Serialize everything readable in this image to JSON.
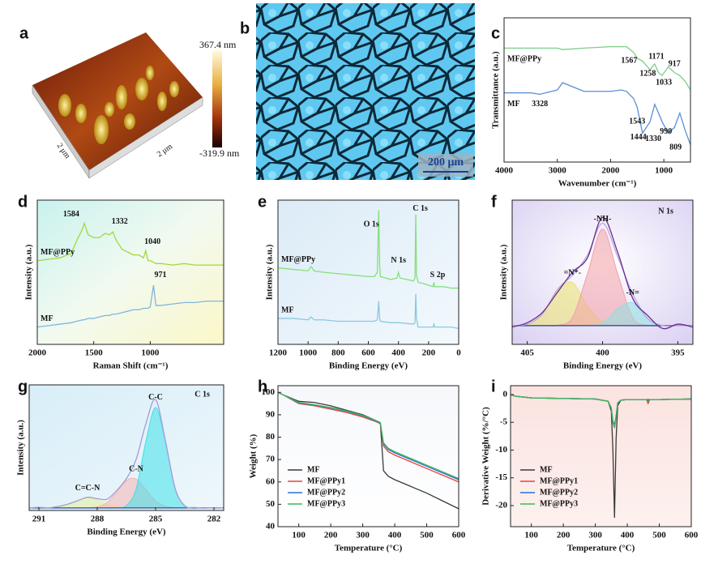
{
  "images": [
    {
      "panel": "a",
      "colorbar_max": "367.4 nm",
      "colorbar_min": "-319.9 nm",
      "axis_labels": [
        "2 μm",
        "2 μm"
      ]
    },
    {
      "panel": "b",
      "scale_bar": "200 μm"
    }
  ],
  "chart_data": [
    {
      "type": "line",
      "panel": "c",
      "xlabel": "Wavenumber (cm⁻¹)",
      "ylabel": "Transmittance (a.u.)",
      "xlim": [
        4000,
        500
      ],
      "xticks": [
        4000,
        3000,
        2000,
        1000
      ],
      "ylim": [
        0,
        100
      ],
      "legend": "inline-below",
      "x": [
        4000,
        3500,
        3328,
        3000,
        2900,
        2500,
        2000,
        1800,
        1700,
        1567,
        1500,
        1400,
        1258,
        1171,
        1100,
        1033,
        917,
        800,
        700,
        600,
        500
      ],
      "series": [
        {
          "name": "MF@PPy",
          "color": "#7ccf8a",
          "values": [
            79,
            79,
            79,
            79,
            78,
            79,
            80,
            80,
            80,
            76,
            72,
            70,
            64,
            68,
            62,
            60,
            66,
            62,
            60,
            56,
            50
          ]
        },
        {
          "name": "MF",
          "color": "#5b8fd6",
          "values": [
            48,
            48,
            47,
            50,
            55,
            49,
            49,
            50,
            49,
            44,
            38,
            20,
            28,
            40,
            34,
            28,
            20,
            24,
            34,
            22,
            12
          ]
        }
      ],
      "annotations": [
        {
          "text": "1567",
          "x": 1650,
          "y": 70
        },
        {
          "text": "1258",
          "x": 1300,
          "y": 61
        },
        {
          "text": "1171",
          "x": 1140,
          "y": 73
        },
        {
          "text": "917",
          "x": 800,
          "y": 68
        },
        {
          "text": "1033",
          "x": 1000,
          "y": 55
        },
        {
          "text": "3328",
          "x": 3328,
          "y": 40
        },
        {
          "text": "1543",
          "x": 1500,
          "y": 28
        },
        {
          "text": "1444",
          "x": 1480,
          "y": 17
        },
        {
          "text": "1330",
          "x": 1200,
          "y": 16
        },
        {
          "text": "990",
          "x": 960,
          "y": 21
        },
        {
          "text": "809",
          "x": 780,
          "y": 10
        }
      ]
    },
    {
      "type": "line",
      "panel": "d",
      "xlabel": "Raman Shift (cm⁻¹)",
      "ylabel": "Intensity (a.u.)",
      "xlim": [
        2000,
        350
      ],
      "xticks": [
        2000,
        1500,
        1000
      ],
      "ylim": [
        0,
        100
      ],
      "legend": "inline-above",
      "x": [
        2000,
        1900,
        1800,
        1700,
        1650,
        1600,
        1584,
        1550,
        1500,
        1450,
        1400,
        1360,
        1332,
        1300,
        1250,
        1200,
        1150,
        1100,
        1060,
        1040,
        1020,
        1000,
        971,
        950,
        900,
        800,
        700,
        600,
        500,
        400,
        350
      ],
      "series": [
        {
          "name": "MF@PPy",
          "color": "#a6d63c",
          "values": [
            58,
            59,
            60,
            63,
            72,
            80,
            84,
            76,
            74,
            74,
            77,
            76,
            78,
            72,
            66,
            64,
            62,
            62,
            60,
            65,
            58,
            58,
            57,
            56,
            56,
            55,
            56,
            55,
            55,
            55,
            55
          ]
        },
        {
          "name": "MF",
          "color": "#7fb6dd",
          "values": [
            12,
            13,
            14,
            15,
            16,
            17,
            17,
            18,
            18,
            19,
            20,
            20,
            21,
            21,
            22,
            23,
            24,
            24,
            25,
            25,
            25,
            26,
            41,
            27,
            27,
            28,
            29,
            29,
            30,
            30,
            30
          ]
        }
      ],
      "annotations": [
        {
          "text": "1584",
          "x": 1700,
          "y": 90
        },
        {
          "text": "1332",
          "x": 1270,
          "y": 85
        },
        {
          "text": "1040",
          "x": 980,
          "y": 71
        },
        {
          "text": "971",
          "x": 910,
          "y": 48
        }
      ]
    },
    {
      "type": "line",
      "panel": "e",
      "xlabel": "Binding Energy (eV)",
      "ylabel": "Intensity (a.u.)",
      "xlim": [
        1200,
        0
      ],
      "xticks": [
        1200,
        1000,
        800,
        600,
        400,
        200,
        0
      ],
      "ylim": [
        0,
        100
      ],
      "legend": "inline-above",
      "x": [
        1200,
        1100,
        1000,
        980,
        960,
        900,
        800,
        700,
        600,
        560,
        540,
        531,
        525,
        520,
        450,
        410,
        400,
        390,
        300,
        290,
        285,
        280,
        270,
        230,
        200,
        170,
        164,
        160,
        100,
        50,
        0
      ],
      "series": [
        {
          "name": "MF@PPy",
          "color": "#86e07a",
          "values": [
            53,
            52,
            51,
            54,
            51,
            50,
            49,
            48,
            47,
            47,
            50,
            93,
            55,
            47,
            45,
            46,
            50,
            46,
            44,
            46,
            90,
            48,
            43,
            42,
            41,
            40,
            43,
            40,
            40,
            39,
            39
          ]
        },
        {
          "name": "MF",
          "color": "#8cc8e0",
          "values": [
            18,
            18,
            17,
            19,
            17,
            17,
            16,
            16,
            16,
            16,
            17,
            30,
            18,
            16,
            15,
            15,
            15,
            15,
            14,
            15,
            35,
            18,
            12,
            12,
            12,
            12,
            14,
            12,
            12,
            12,
            11
          ]
        }
      ],
      "annotations": [
        {
          "text": "O 1s",
          "x": 580,
          "y": 83
        },
        {
          "text": "N 1s",
          "x": 400,
          "y": 58
        },
        {
          "text": "C 1s",
          "x": 255,
          "y": 94
        },
        {
          "text": "S 2p",
          "x": 140,
          "y": 48
        }
      ]
    },
    {
      "type": "line",
      "panel": "f",
      "xlabel": "Binding Energy (eV)",
      "ylabel": "Intensity (a.u.)",
      "xlim": [
        406,
        394
      ],
      "xticks": [
        405,
        400,
        395
      ],
      "ylim": [
        0,
        100
      ],
      "legend": "peak",
      "smooth": true,
      "x": [
        406,
        405,
        404,
        403,
        402,
        401,
        400,
        399,
        398,
        397,
        396,
        395,
        394
      ],
      "series": [
        {
          "name": "=N⁺-",
          "color": "#ece36a",
          "fill": true,
          "values": [
            13,
            13.8,
            20.4,
            37.3,
            42.7,
            26.3,
            15.3,
            13.1,
            13,
            13,
            13,
            13,
            13
          ]
        },
        {
          "name": "-NH-",
          "color": "#f2a0a8",
          "fill": true,
          "values": [
            13,
            13,
            13,
            13.2,
            18.7,
            49,
            80,
            49,
            18.7,
            13.2,
            13,
            13,
            13
          ]
        },
        {
          "name": "-N=",
          "color": "#8fe0e0",
          "fill": true,
          "values": [
            13,
            13,
            13,
            13,
            13,
            13,
            14.7,
            24.6,
            28.8,
            17.5,
            13.3,
            13,
            13
          ]
        },
        {
          "color": "#1f3f8f",
          "values": [
            13,
            13,
            13,
            13,
            13,
            13,
            13,
            13,
            13,
            13,
            13,
            13,
            13
          ]
        },
        {
          "color": "#b9a6e0",
          "values": [
            13,
            14,
            21,
            38,
            48,
            62,
            84,
            61,
            35,
            18,
            13,
            13,
            13
          ]
        },
        {
          "color": "#6a2c91",
          "values": [
            12,
            15,
            22,
            36,
            50,
            60,
            88,
            64,
            32,
            20,
            11,
            14,
            12
          ]
        }
      ],
      "annotations": [
        {
          "text": "N 1s",
          "x": 395.8,
          "y": 92
        }
      ]
    },
    {
      "type": "line",
      "panel": "g",
      "xlabel": "Binding Energy (eV)",
      "ylabel": "Intensity (a.u.)",
      "xlim": [
        291.5,
        281.5
      ],
      "xticks": [
        291,
        288,
        285,
        282
      ],
      "ylim": [
        0,
        100
      ],
      "legend": "peak",
      "smooth": true,
      "x": [
        291.5,
        291,
        290.5,
        290,
        289.5,
        289,
        288.5,
        288,
        287.5,
        287,
        286.5,
        286,
        285.5,
        285,
        284.5,
        284,
        283.5,
        283,
        282.5,
        282,
        281.5
      ],
      "series": [
        {
          "name": "C=C-N",
          "color": "#e6ef9a",
          "fill": true,
          "values": [
            2,
            2,
            2.1,
            2.8,
            4.9,
            8.2,
            10,
            8.2,
            4.9,
            2.8,
            2.1,
            2,
            2,
            2,
            2,
            2,
            2,
            2,
            2,
            2,
            2
          ]
        },
        {
          "name": "C-N",
          "color": "#f5b3b3",
          "fill": true,
          "values": [
            2,
            2,
            2,
            2,
            2,
            2,
            2.1,
            2.9,
            6.3,
            14.5,
            23.9,
            25,
            16.6,
            7.5,
            3.3,
            2.2,
            2,
            2,
            2,
            2,
            2
          ]
        },
        {
          "name": "C-C",
          "color": "#3fe0ea",
          "fill": true,
          "values": [
            2,
            2,
            2,
            2,
            2,
            2,
            2,
            2,
            2,
            2.1,
            3.9,
            17.2,
            55,
            82,
            55,
            17.2,
            3.9,
            2.1,
            2,
            2,
            2
          ]
        },
        {
          "color": "#1f4f9f",
          "values": [
            2,
            2,
            2,
            2,
            2,
            2,
            2,
            2,
            2,
            2,
            2,
            2,
            2,
            2,
            2,
            2,
            2,
            2,
            2,
            2,
            2
          ]
        },
        {
          "color": "#a79ad8",
          "values": [
            2,
            2.5,
            2.1,
            3.2,
            5.1,
            7.8,
            10.5,
            9.4,
            9.0,
            15.9,
            25.4,
            40.8,
            69.1,
            88.2,
            55.8,
            17.9,
            3.6,
            2.4,
            1.8,
            2.2,
            2
          ]
        }
      ],
      "annotations": [
        {
          "text": "C 1s",
          "x": 282.6,
          "y": 92
        }
      ]
    },
    {
      "type": "line",
      "panel": "h",
      "xlabel": "Temperature (°C)",
      "ylabel": "Weight (%)",
      "xlim": [
        35,
        600
      ],
      "xticks": [
        100,
        200,
        300,
        400,
        500,
        600
      ],
      "ylim": [
        40,
        103
      ],
      "yticks": [
        40,
        50,
        60,
        70,
        80,
        90,
        100
      ],
      "legend": "lower left",
      "x": [
        35,
        50,
        100,
        150,
        200,
        250,
        300,
        340,
        355,
        365,
        380,
        400,
        450,
        500,
        550,
        600
      ],
      "series": [
        {
          "name": "MF",
          "color": "#3a3a3a",
          "values": [
            100,
            99,
            96,
            95.5,
            94,
            92,
            90,
            87.5,
            86.5,
            65,
            62.5,
            61,
            58,
            55,
            51.5,
            48
          ]
        },
        {
          "name": "MF@PPy1",
          "color": "#e8413c",
          "values": [
            100,
            99,
            95,
            94,
            92.5,
            91,
            89,
            87,
            86,
            76,
            73.5,
            72,
            69,
            66,
            63,
            60
          ]
        },
        {
          "name": "MF@PPy2",
          "color": "#2f6fd6",
          "values": [
            100,
            99,
            95.3,
            94.3,
            93,
            91.5,
            89.5,
            87.3,
            86.3,
            77,
            74.5,
            73,
            70,
            67,
            64,
            61
          ]
        },
        {
          "name": "MF@PPy3",
          "color": "#3cb95a",
          "values": [
            100,
            99,
            95.5,
            94.5,
            93.2,
            91.7,
            89.7,
            87.5,
            86.5,
            77.5,
            75,
            73.5,
            70.5,
            67.5,
            64.5,
            61.5
          ]
        }
      ]
    },
    {
      "type": "line",
      "panel": "i",
      "xlabel": "Temperature (°C)",
      "ylabel": "Derivative Weight (%/°C)",
      "xlim": [
        35,
        600
      ],
      "xticks": [
        100,
        200,
        300,
        400,
        500,
        600
      ],
      "ylim": [
        -23.8,
        1.6
      ],
      "yticks": [
        0,
        -5,
        -10,
        -15,
        -20
      ],
      "legend": "lower left",
      "x": [
        35,
        50,
        100,
        200,
        300,
        340,
        350,
        355,
        360,
        365,
        370,
        380,
        400,
        460,
        465,
        470,
        500,
        600
      ],
      "series": [
        {
          "name": "MF",
          "color": "#3a3a3a",
          "values": [
            0,
            -0.3,
            -0.6,
            -0.7,
            -0.8,
            -1.2,
            -3,
            -10,
            -22.2,
            -8,
            -2,
            -1,
            -0.9,
            -0.9,
            -0.9,
            -0.9,
            -0.9,
            -0.8
          ]
        },
        {
          "name": "MF@PPy1",
          "color": "#e8413c",
          "values": [
            0,
            -0.3,
            -0.6,
            -0.7,
            -0.8,
            -1.2,
            -2.5,
            -5,
            -6,
            -4,
            -1.5,
            -1,
            -0.9,
            -0.9,
            -1.6,
            -0.9,
            -0.9,
            -0.8
          ]
        },
        {
          "name": "MF@PPy2",
          "color": "#2f6fd6",
          "values": [
            0,
            -0.3,
            -0.6,
            -0.7,
            -0.8,
            -1.2,
            -2.4,
            -4.8,
            -5.5,
            -3.8,
            -1.5,
            -1,
            -0.9,
            -0.9,
            -1.2,
            -0.9,
            -0.9,
            -0.8
          ]
        },
        {
          "name": "MF@PPy3",
          "color": "#3cb95a",
          "values": [
            0,
            -0.3,
            -0.6,
            -0.7,
            -0.8,
            -1.2,
            -2.6,
            -5.1,
            -5.8,
            -4,
            -1.5,
            -1,
            -0.9,
            -0.9,
            -1.1,
            -0.9,
            -0.9,
            -0.8
          ]
        }
      ]
    }
  ]
}
